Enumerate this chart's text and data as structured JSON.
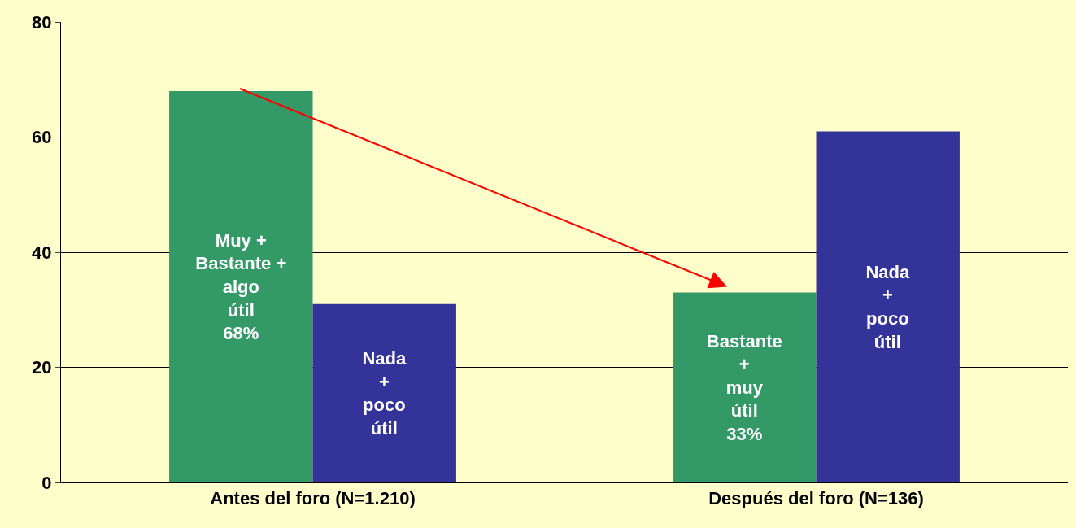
{
  "chart_data": {
    "type": "bar",
    "categories": [
      "Antes del foro (N=1.210)",
      "Después del foro (N=136)"
    ],
    "series": [
      {
        "color": "#339966",
        "values": [
          68,
          33
        ],
        "value_labels": [
          "Muy +\nBastante +\nalgo\nútil\n68%",
          "Bastante\n+\nmuy\nútil\n33%"
        ]
      },
      {
        "color": "#333399",
        "values": [
          31,
          61
        ],
        "value_labels": [
          "Nada\n+\npoco\nútil",
          "Nada\n+\npoco\nútil"
        ]
      }
    ],
    "ylim": [
      0,
      80
    ],
    "yticks": [
      0,
      20,
      40,
      60,
      80
    ],
    "grid": "y",
    "legend": false
  }
}
